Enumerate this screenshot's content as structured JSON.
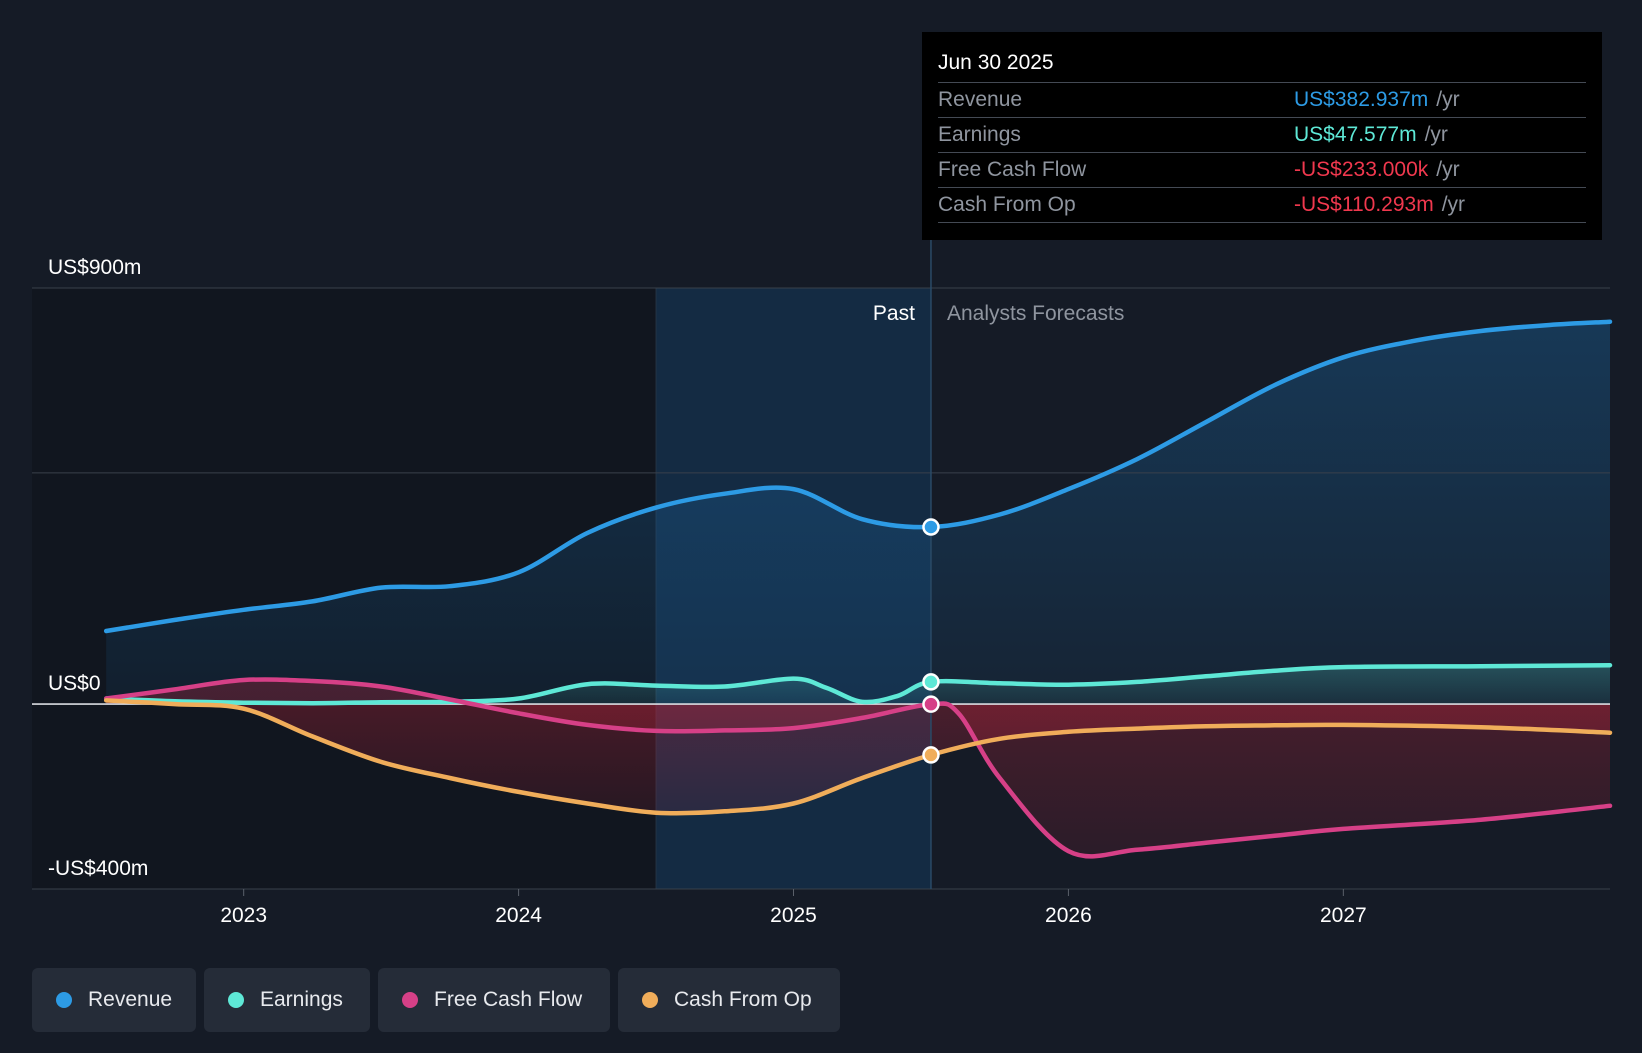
{
  "tooltip": {
    "date": "Jun 30 2025",
    "rows": [
      {
        "label": "Revenue",
        "value": "US$382.937m",
        "unit": "/yr",
        "color": "#2d9be5"
      },
      {
        "label": "Earnings",
        "value": "US$47.577m",
        "unit": "/yr",
        "color": "#5ee8d6"
      },
      {
        "label": "Free Cash Flow",
        "value": "-US$233.000k",
        "unit": "/yr",
        "color": "#f0384e"
      },
      {
        "label": "Cash From Op",
        "value": "-US$110.293m",
        "unit": "/yr",
        "color": "#f0384e"
      }
    ]
  },
  "legend": [
    {
      "label": "Revenue",
      "color": "#2d9be5"
    },
    {
      "label": "Earnings",
      "color": "#5ee8d6"
    },
    {
      "label": "Free Cash Flow",
      "color": "#d64087"
    },
    {
      "label": "Cash From Op",
      "color": "#f0ad5a"
    }
  ],
  "chart_data": {
    "type": "line",
    "title": "",
    "xlabel": "",
    "ylabel": "",
    "x_range": [
      2022.23,
      2027.97
    ],
    "ylim": [
      -400,
      900
    ],
    "y_gridlines": [
      900,
      500,
      0,
      -400
    ],
    "y_tick_labels": [
      {
        "value": 900,
        "label": "US$900m"
      },
      {
        "value": 0,
        "label": "US$0"
      },
      {
        "value": -400,
        "label": "-US$400m"
      }
    ],
    "x_ticks": [
      {
        "value": 2023,
        "label": "2023"
      },
      {
        "value": 2024,
        "label": "2024"
      },
      {
        "value": 2025,
        "label": "2025"
      },
      {
        "value": 2026,
        "label": "2026"
      },
      {
        "value": 2027,
        "label": "2027"
      }
    ],
    "past_label": "Past",
    "forecast_label": "Analysts Forecasts",
    "highlight_start": 2024.5,
    "divider": 2025.5,
    "series": [
      {
        "name": "Revenue",
        "color": "#2d9be5",
        "x": [
          2022.5,
          2022.75,
          2023.0,
          2023.25,
          2023.5,
          2023.75,
          2024.0,
          2024.25,
          2024.5,
          2024.75,
          2025.0,
          2025.25,
          2025.5,
          2025.75,
          2026.0,
          2026.25,
          2026.5,
          2026.75,
          2027.0,
          2027.25,
          2027.5,
          2027.75,
          2027.97
        ],
        "values": [
          158,
          182,
          204,
          222,
          252,
          255,
          285,
          370,
          425,
          455,
          465,
          400,
          383,
          410,
          465,
          530,
          610,
          690,
          750,
          785,
          807,
          820,
          827
        ]
      },
      {
        "name": "Earnings",
        "color": "#5ee8d6",
        "x": [
          2022.5,
          2022.75,
          2023.0,
          2023.25,
          2023.5,
          2023.75,
          2024.0,
          2024.25,
          2024.5,
          2024.75,
          2025.0,
          2025.12,
          2025.25,
          2025.38,
          2025.5,
          2025.75,
          2026.0,
          2026.25,
          2026.5,
          2026.75,
          2027.0,
          2027.5,
          2027.97
        ],
        "values": [
          12,
          6,
          3,
          2,
          4,
          5,
          12,
          43,
          40,
          38,
          55,
          35,
          5,
          18,
          48,
          45,
          42,
          48,
          60,
          72,
          80,
          82,
          84
        ]
      },
      {
        "name": "Free Cash Flow",
        "color": "#d64087",
        "x": [
          2022.5,
          2022.75,
          2023.0,
          2023.25,
          2023.5,
          2023.75,
          2024.0,
          2024.25,
          2024.5,
          2024.75,
          2025.0,
          2025.25,
          2025.5,
          2025.6,
          2025.75,
          2026.0,
          2026.25,
          2026.5,
          2026.75,
          2027.0,
          2027.5,
          2027.97
        ],
        "values": [
          12,
          32,
          52,
          50,
          38,
          10,
          -20,
          -45,
          -58,
          -57,
          -52,
          -30,
          -0.233,
          -20,
          -160,
          -318,
          -315,
          -300,
          -285,
          -270,
          -250,
          -220
        ]
      },
      {
        "name": "Cash From Op",
        "color": "#f0ad5a",
        "x": [
          2022.5,
          2022.75,
          2023.0,
          2023.25,
          2023.5,
          2023.75,
          2024.0,
          2024.25,
          2024.5,
          2024.75,
          2025.0,
          2025.25,
          2025.5,
          2025.75,
          2026.0,
          2026.25,
          2026.5,
          2026.75,
          2027.0,
          2027.5,
          2027.97
        ],
        "values": [
          8,
          0,
          -10,
          -70,
          -125,
          -160,
          -190,
          -215,
          -235,
          -232,
          -215,
          -160,
          -110,
          -75,
          -60,
          -53,
          -48,
          -46,
          -45,
          -50,
          -62
        ]
      }
    ],
    "markers": [
      {
        "series": "Revenue",
        "x": 2025.5,
        "y": 383
      },
      {
        "series": "Earnings",
        "x": 2025.5,
        "y": 48
      },
      {
        "series": "Free Cash Flow",
        "x": 2025.5,
        "y": -0.233
      },
      {
        "series": "Cash From Op",
        "x": 2025.5,
        "y": -110
      }
    ]
  }
}
